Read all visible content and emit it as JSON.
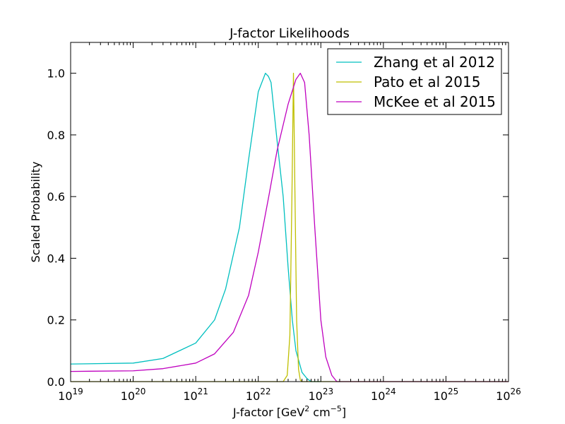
{
  "chart_data": {
    "type": "line",
    "title": "J-factor Likelihoods",
    "xlabel": {
      "prefix": "J-factor [GeV",
      "sup1": "2",
      "middle": " cm",
      "sup2": "−5",
      "suffix": "]"
    },
    "ylabel": "Scaled Probability",
    "x_scale": "log",
    "xlim": [
      1e+19,
      1e+26
    ],
    "ylim": [
      0.0,
      1.1
    ],
    "x_ticks": [
      {
        "base": "10",
        "exp": "19",
        "value": 1e+19
      },
      {
        "base": "10",
        "exp": "20",
        "value": 1e+20
      },
      {
        "base": "10",
        "exp": "21",
        "value": 1e+21
      },
      {
        "base": "10",
        "exp": "22",
        "value": 1e+22
      },
      {
        "base": "10",
        "exp": "23",
        "value": 1e+23
      },
      {
        "base": "10",
        "exp": "24",
        "value": 1e+24
      },
      {
        "base": "10",
        "exp": "25",
        "value": 1e+25
      },
      {
        "base": "10",
        "exp": "26",
        "value": 1e+26
      }
    ],
    "y_ticks": [
      "0.0",
      "0.2",
      "0.4",
      "0.6",
      "0.8",
      "1.0"
    ],
    "y_tick_values": [
      0.0,
      0.2,
      0.4,
      0.6,
      0.8,
      1.0
    ],
    "grid": false,
    "legend_position": "top-right",
    "series": [
      {
        "name": "Zhang et al 2012",
        "color": "#00bfbf",
        "x": [
          1e+19,
          1e+20,
          3e+20,
          1e+21,
          2e+21,
          3e+21,
          5e+21,
          7e+21,
          1e+22,
          1.3e+22,
          1.45e+22,
          1.6e+22,
          2e+22,
          2.5e+22,
          3e+22,
          3.5e+22,
          4e+22,
          5e+22,
          6e+22,
          7e+22,
          1e+23
        ],
        "y": [
          0.057,
          0.06,
          0.075,
          0.125,
          0.2,
          0.3,
          0.5,
          0.72,
          0.94,
          1.0,
          0.99,
          0.97,
          0.78,
          0.6,
          0.37,
          0.2,
          0.1,
          0.03,
          0.01,
          0.0,
          0.0
        ]
      },
      {
        "name": "Pato et al 2015",
        "color": "#bfbf00",
        "x": [
          1e+19,
          2.5e+22,
          2.9e+22,
          3.2e+22,
          3.45e+22,
          3.65e+22,
          3.85e+22,
          4.1e+22,
          4.4e+22,
          4.7e+22,
          5e+22,
          1e+26
        ],
        "y": [
          0.0,
          0.0,
          0.02,
          0.15,
          0.6,
          1.0,
          0.62,
          0.2,
          0.04,
          0.005,
          0.0,
          0.0
        ]
      },
      {
        "name": "McKee et al 2015",
        "color": "#bf00bf",
        "x": [
          1e+19,
          1e+20,
          3e+20,
          1e+21,
          2e+21,
          4e+21,
          7e+21,
          1e+22,
          1.5e+22,
          2e+22,
          3e+22,
          4e+22,
          4.7e+22,
          5.5e+22,
          6.5e+22,
          8e+22,
          1e+23,
          1.2e+23,
          1.5e+23,
          1.8e+23,
          2.5e+23,
          1e+26
        ],
        "y": [
          0.033,
          0.035,
          0.042,
          0.06,
          0.09,
          0.16,
          0.28,
          0.42,
          0.61,
          0.75,
          0.9,
          0.98,
          1.0,
          0.97,
          0.8,
          0.5,
          0.2,
          0.08,
          0.02,
          0.0,
          0.0,
          0.0
        ]
      }
    ]
  }
}
